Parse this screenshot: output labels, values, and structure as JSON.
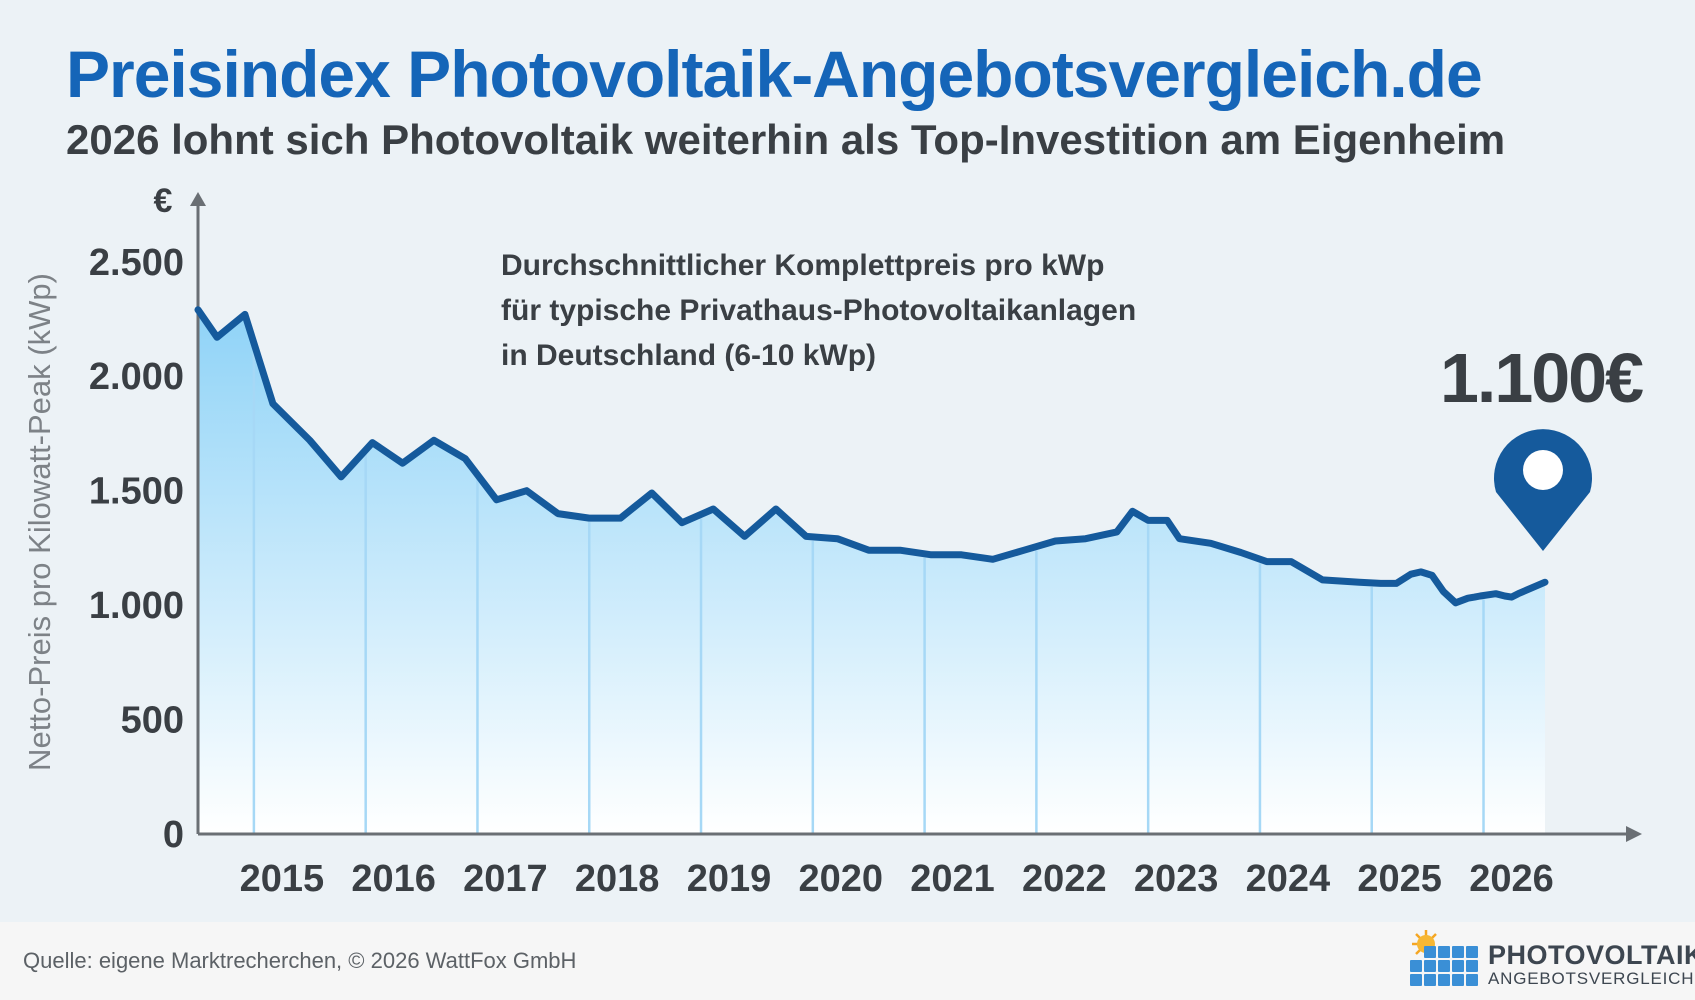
{
  "header": {
    "title": "Preisindex Photovoltaik-Angebotsvergleich.de",
    "subtitle": "2026 lohnt sich Photovoltaik weiterhin als Top-Investition am Eigenheim"
  },
  "chart_data": {
    "type": "area",
    "ylabel": "Netto-Preis pro Kilowatt-Peak (kWp)",
    "yunit": "€",
    "ylim": [
      0,
      2700
    ],
    "yticks": [
      0,
      500,
      1000,
      1500,
      2000,
      2500
    ],
    "ytick_labels": [
      "0",
      "500",
      "1.000",
      "1.500",
      "2.000",
      "2.500"
    ],
    "xlim": [
      2014.25,
      2026.3
    ],
    "xticks": [
      2015,
      2016,
      2017,
      2018,
      2019,
      2020,
      2021,
      2022,
      2023,
      2024,
      2025,
      2026
    ],
    "xtick_labels": [
      "2015",
      "2016",
      "2017",
      "2018",
      "2019",
      "2020",
      "2021",
      "2022",
      "2023",
      "2024",
      "2025",
      "2026"
    ],
    "annotation": [
      "Durchschnittlicher Komplettpreis pro kWp",
      "für typische Privathaus-Photovoltaikanlagen",
      "in Deutschland (6-10 kWp)"
    ],
    "callout": "1.100€",
    "grid": false,
    "colors": {
      "line": "#155a9c",
      "fill_top": "#8fd3f7",
      "fill_bottom": "#ffffff",
      "marker": "#155a9c",
      "vertical_lines": "#a6d8f6"
    },
    "series": [
      {
        "x": [
          2014.25,
          2014.42,
          2014.67,
          2014.92,
          2015.25,
          2015.53,
          2015.81,
          2016.08,
          2016.36,
          2016.64,
          2016.92,
          2017.19,
          2017.47,
          2017.75,
          2018.03,
          2018.31,
          2018.58,
          2018.86,
          2019.14,
          2019.42,
          2019.69,
          2019.97,
          2020.25,
          2020.53,
          2020.81,
          2021.08,
          2021.36,
          2021.64,
          2021.92,
          2022.19,
          2022.47,
          2022.61,
          2022.75,
          2022.92,
          2023.03,
          2023.31,
          2023.58,
          2023.81,
          2024.03,
          2024.31,
          2024.64,
          2024.83,
          2024.97,
          2025.1,
          2025.19,
          2025.29,
          2025.39,
          2025.5,
          2025.61,
          2025.67,
          2025.72,
          2025.86,
          2025.94,
          2026.0,
          2026.06,
          2026.3
        ],
        "values": [
          2290,
          2170,
          2270,
          1880,
          1720,
          1560,
          1710,
          1620,
          1720,
          1640,
          1460,
          1500,
          1400,
          1380,
          1380,
          1490,
          1360,
          1420,
          1300,
          1420,
          1300,
          1290,
          1240,
          1240,
          1220,
          1220,
          1200,
          1240,
          1280,
          1290,
          1320,
          1410,
          1370,
          1370,
          1290,
          1270,
          1230,
          1190,
          1190,
          1110,
          1100,
          1095,
          1095,
          1135,
          1145,
          1130,
          1060,
          1010,
          1030,
          1035,
          1040,
          1050,
          1040,
          1035,
          1050,
          1100
        ]
      }
    ]
  },
  "footer": {
    "source": "Quelle: eigene Marktrecherchen, © 2026 WattFox GmbH",
    "logo_line1": "PHOTOVOLTAIK",
    "logo_line2": "ANGEBOTSVERGLEICH"
  }
}
